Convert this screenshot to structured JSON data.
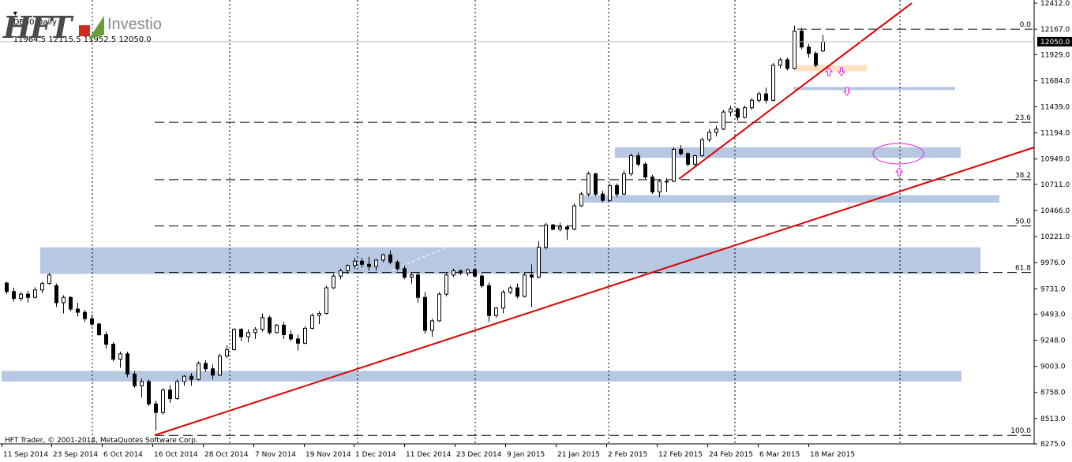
{
  "header": {
    "symbol": "DE30,Daily",
    "ohlc": "11964.5 12115.5 11952.5 12050.0"
  },
  "logo": {
    "brand": "HFT",
    "sub": "Investio"
  },
  "footer": {
    "copyright": "HFT Trader, © 2001-2014, MetaQuotes Software Corp."
  },
  "colors": {
    "trendline": "#dd0000",
    "zone": "#b7c9e2",
    "zone_orange": "#fde0c0",
    "arrow": "#e020e0",
    "candle_bull": "#ffffff",
    "candle_bear": "#000000"
  },
  "chart_data": {
    "type": "candlestick",
    "instrument": "DE30",
    "timeframe": "Daily",
    "last_price": "12050.0",
    "y_ticks": [
      "12412.0",
      "12167.0",
      "11929.0",
      "11684.0",
      "11439.0",
      "11194.0",
      "10949.0",
      "10711.0",
      "10466.0",
      "10221.0",
      "9976.0",
      "9731.0",
      "9493.0",
      "9248.0",
      "9003.0",
      "8758.0",
      "8513.0",
      "8275.0"
    ],
    "ylim": [
      8275,
      12412
    ],
    "x_labels": [
      "11 Sep 2014",
      "23 Sep 2014",
      "6 Oct 2014",
      "16 Oct 2014",
      "28 Oct 2014",
      "7 Nov 2014",
      "19 Nov 2014",
      "1 Dec 2014",
      "11 Dec 2014",
      "23 Dec 2014",
      "9 Jan 2015",
      "21 Jan 2015",
      "2 Feb 2015",
      "12 Feb 2015",
      "24 Feb 2015",
      "6 Mar 2015",
      "18 Mar 2015"
    ],
    "fib_levels": [
      {
        "label": "0.0",
        "price": 12167
      },
      {
        "label": "23.6",
        "price": 11294
      },
      {
        "label": "38.2",
        "price": 10755
      },
      {
        "label": "50.0",
        "price": 10320
      },
      {
        "label": "61.8",
        "price": 9884
      },
      {
        "label": "100.0",
        "price": 8355
      }
    ],
    "zones": [
      {
        "from": 9870,
        "to": 10120
      },
      {
        "from": 8860,
        "to": 8960
      },
      {
        "from": 10540,
        "to": 10610
      },
      {
        "from": 10960,
        "to": 11060
      },
      {
        "from": 11600,
        "to": 11625
      },
      {
        "from": 11772,
        "to": 11830,
        "color": "orange"
      }
    ],
    "candles": [
      [
        9784,
        9800,
        9680,
        9705
      ],
      [
        9705,
        9740,
        9610,
        9640
      ],
      [
        9640,
        9700,
        9615,
        9680
      ],
      [
        9680,
        9710,
        9600,
        9650
      ],
      [
        9650,
        9745,
        9640,
        9720
      ],
      [
        9720,
        9800,
        9690,
        9780
      ],
      [
        9780,
        9880,
        9770,
        9860
      ],
      [
        9760,
        9780,
        9560,
        9600
      ],
      [
        9600,
        9670,
        9500,
        9650
      ],
      [
        9650,
        9660,
        9520,
        9540
      ],
      [
        9540,
        9600,
        9470,
        9510
      ],
      [
        9510,
        9530,
        9420,
        9450
      ],
      [
        9450,
        9490,
        9380,
        9400
      ],
      [
        9400,
        9410,
        9290,
        9300
      ],
      [
        9300,
        9330,
        9170,
        9210
      ],
      [
        9210,
        9230,
        9050,
        9070
      ],
      [
        9070,
        9140,
        8990,
        9120
      ],
      [
        9120,
        9140,
        8900,
        8930
      ],
      [
        8930,
        8960,
        8800,
        8820
      ],
      [
        8820,
        8890,
        8710,
        8860
      ],
      [
        8860,
        8880,
        8630,
        8650
      ],
      [
        8650,
        8680,
        8400,
        8570
      ],
      [
        8570,
        8800,
        8550,
        8780
      ],
      [
        8780,
        8830,
        8660,
        8700
      ],
      [
        8700,
        8880,
        8690,
        8860
      ],
      [
        8860,
        8920,
        8820,
        8910
      ],
      [
        8910,
        8940,
        8820,
        8880
      ],
      [
        8880,
        9050,
        8870,
        9030
      ],
      [
        9030,
        9060,
        8950,
        8980
      ],
      [
        8980,
        9020,
        8880,
        8920
      ],
      [
        8920,
        9120,
        8910,
        9100
      ],
      [
        9100,
        9200,
        9080,
        9160
      ],
      [
        9160,
        9360,
        9150,
        9350
      ],
      [
        9350,
        9360,
        9240,
        9280
      ],
      [
        9280,
        9350,
        9230,
        9320
      ],
      [
        9320,
        9370,
        9260,
        9350
      ],
      [
        9350,
        9500,
        9330,
        9460
      ],
      [
        9460,
        9480,
        9300,
        9320
      ],
      [
        9320,
        9400,
        9310,
        9390
      ],
      [
        9390,
        9420,
        9260,
        9300
      ],
      [
        9300,
        9340,
        9240,
        9260
      ],
      [
        9260,
        9300,
        9150,
        9220
      ],
      [
        9220,
        9380,
        9210,
        9360
      ],
      [
        9360,
        9500,
        9350,
        9480
      ],
      [
        9480,
        9520,
        9400,
        9500
      ],
      [
        9500,
        9760,
        9490,
        9740
      ],
      [
        9740,
        9870,
        9730,
        9850
      ],
      [
        9850,
        9920,
        9820,
        9900
      ],
      [
        9900,
        9960,
        9870,
        9950
      ],
      [
        9950,
        10020,
        9920,
        9990
      ],
      [
        9990,
        10020,
        9930,
        9960
      ],
      [
        9960,
        10030,
        9900,
        9940
      ],
      [
        9940,
        10010,
        9900,
        10000
      ],
      [
        10000,
        10060,
        9980,
        10050
      ],
      [
        10050,
        10090,
        9960,
        9980
      ],
      [
        9980,
        10000,
        9900,
        9920
      ],
      [
        9920,
        9950,
        9820,
        9840
      ],
      [
        9840,
        9880,
        9780,
        9860
      ],
      [
        9860,
        9880,
        9600,
        9650
      ],
      [
        9650,
        9700,
        9310,
        9340
      ],
      [
        9340,
        9450,
        9280,
        9430
      ],
      [
        9430,
        9700,
        9420,
        9680
      ],
      [
        9680,
        9880,
        9660,
        9860
      ],
      [
        9860,
        9920,
        9840,
        9900
      ],
      [
        9900,
        9910,
        9860,
        9880
      ],
      [
        9880,
        9920,
        9850,
        9910
      ],
      [
        9910,
        9920,
        9840,
        9850
      ],
      [
        9850,
        9870,
        9740,
        9760
      ],
      [
        9760,
        9790,
        9420,
        9480
      ],
      [
        9480,
        9560,
        9460,
        9550
      ],
      [
        9550,
        9720,
        9500,
        9700
      ],
      [
        9700,
        9760,
        9680,
        9740
      ],
      [
        9740,
        9780,
        9640,
        9660
      ],
      [
        9660,
        9880,
        9650,
        9860
      ],
      [
        9860,
        9960,
        9560,
        9840
      ],
      [
        9840,
        10180,
        9830,
        10120
      ],
      [
        10120,
        10350,
        10100,
        10330
      ],
      [
        10330,
        10340,
        10280,
        10290
      ],
      [
        10290,
        10350,
        10270,
        10310
      ],
      [
        10310,
        10330,
        10190,
        10290
      ],
      [
        10290,
        10530,
        10280,
        10510
      ],
      [
        10510,
        10640,
        10500,
        10620
      ],
      [
        10620,
        10830,
        10600,
        10810
      ],
      [
        10810,
        10820,
        10600,
        10620
      ],
      [
        10620,
        10650,
        10540,
        10560
      ],
      [
        10560,
        10720,
        10550,
        10700
      ],
      [
        10700,
        10720,
        10590,
        10620
      ],
      [
        10620,
        10840,
        10610,
        10810
      ],
      [
        10810,
        11000,
        10790,
        10980
      ],
      [
        10980,
        11010,
        10880,
        10900
      ],
      [
        10900,
        10920,
        10760,
        10780
      ],
      [
        10780,
        10800,
        10620,
        10640
      ],
      [
        10640,
        10760,
        10590,
        10740
      ],
      [
        10740,
        10770,
        10640,
        10740
      ],
      [
        10740,
        11060,
        10730,
        11040
      ],
      [
        11040,
        11080,
        10980,
        11000
      ],
      [
        11000,
        11010,
        10880,
        10900
      ],
      [
        10900,
        10990,
        10880,
        10980
      ],
      [
        10980,
        11150,
        10970,
        11130
      ],
      [
        11130,
        11230,
        11110,
        11200
      ],
      [
        11200,
        11260,
        11160,
        11230
      ],
      [
        11230,
        11410,
        11220,
        11390
      ],
      [
        11390,
        11450,
        11350,
        11420
      ],
      [
        11420,
        11430,
        11310,
        11340
      ],
      [
        11340,
        11450,
        11330,
        11430
      ],
      [
        11430,
        11520,
        11410,
        11500
      ],
      [
        11500,
        11580,
        11480,
        11560
      ],
      [
        11560,
        11620,
        11470,
        11500
      ],
      [
        11500,
        11850,
        11490,
        11830
      ],
      [
        11830,
        11900,
        11800,
        11880
      ],
      [
        11880,
        11900,
        11780,
        11800
      ],
      [
        11800,
        12200,
        11790,
        12150
      ],
      [
        12150,
        12180,
        11980,
        12000
      ],
      [
        12000,
        12030,
        11900,
        11940
      ],
      [
        11940,
        11960,
        11810,
        11830
      ],
      [
        11964.5,
        12115.5,
        11952.5,
        12050
      ]
    ]
  }
}
